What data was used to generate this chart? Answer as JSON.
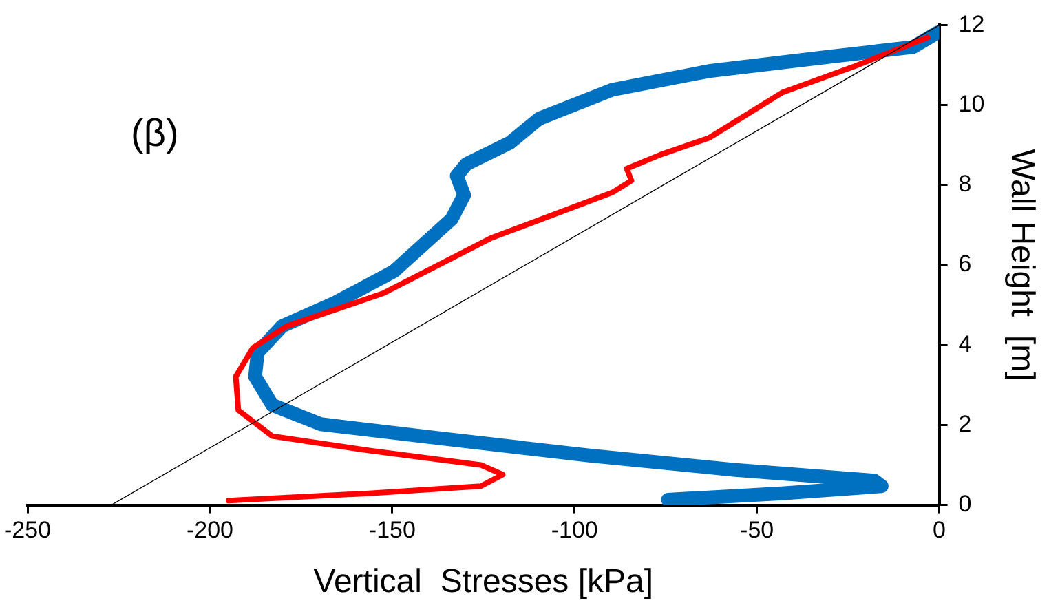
{
  "chart_data": {
    "type": "line",
    "xlabel": "Vertical  Stresses [kPa]",
    "ylabel": "Wall Height  [m]",
    "xlim": [
      -250,
      0
    ],
    "xticks": [
      -250,
      -200,
      -150,
      -100,
      -50,
      0
    ],
    "ylim": [
      0,
      12
    ],
    "yticks": [
      0,
      2,
      4,
      6,
      8,
      10,
      12
    ],
    "grid": false,
    "legend": false,
    "marker": "none",
    "line_style": "solid",
    "annotations": [
      "(β)"
    ],
    "series": [
      {
        "color": "#0070c0",
        "x": [
          -74.4,
          -43.1,
          -15.8,
          -17.8,
          -56.4,
          -96.4,
          -136.3,
          -169.6,
          -182.9,
          -187.6,
          -186.9,
          -180.2,
          -165.6,
          -149.6,
          -133.7,
          -130.3,
          -132.3,
          -129.7,
          -117.7,
          -109.7,
          -89.7,
          -63.1,
          -29.8,
          -7.2,
          -0.5
        ],
        "values": [
          0.13,
          0.29,
          0.47,
          0.61,
          0.88,
          1.24,
          1.66,
          2.02,
          2.5,
          3.21,
          3.81,
          4.47,
          5.06,
          5.84,
          7.15,
          7.75,
          8.23,
          8.52,
          9.06,
          9.66,
          10.38,
          10.85,
          11.21,
          11.45,
          11.81
        ]
      },
      {
        "color": "#ff0000",
        "x": [
          -194.9,
          -156.3,
          -125.7,
          -119.7,
          -125.7,
          -156.3,
          -182.9,
          -192.2,
          -192.9,
          -188.2,
          -178.9,
          -152.3,
          -123.0,
          -89.7,
          -84.4,
          -85.7,
          -76.4,
          -63.1,
          -43.1,
          -23.2,
          -3.2
        ],
        "values": [
          0.11,
          0.29,
          0.47,
          0.76,
          1.0,
          1.36,
          1.72,
          2.37,
          3.21,
          3.93,
          4.47,
          5.3,
          6.67,
          7.81,
          8.11,
          8.41,
          8.76,
          9.18,
          10.31,
          10.97,
          11.69
        ]
      },
      {
        "color": "#000000",
        "x": [
          -227,
          0
        ],
        "values": [
          0,
          12
        ]
      }
    ]
  }
}
